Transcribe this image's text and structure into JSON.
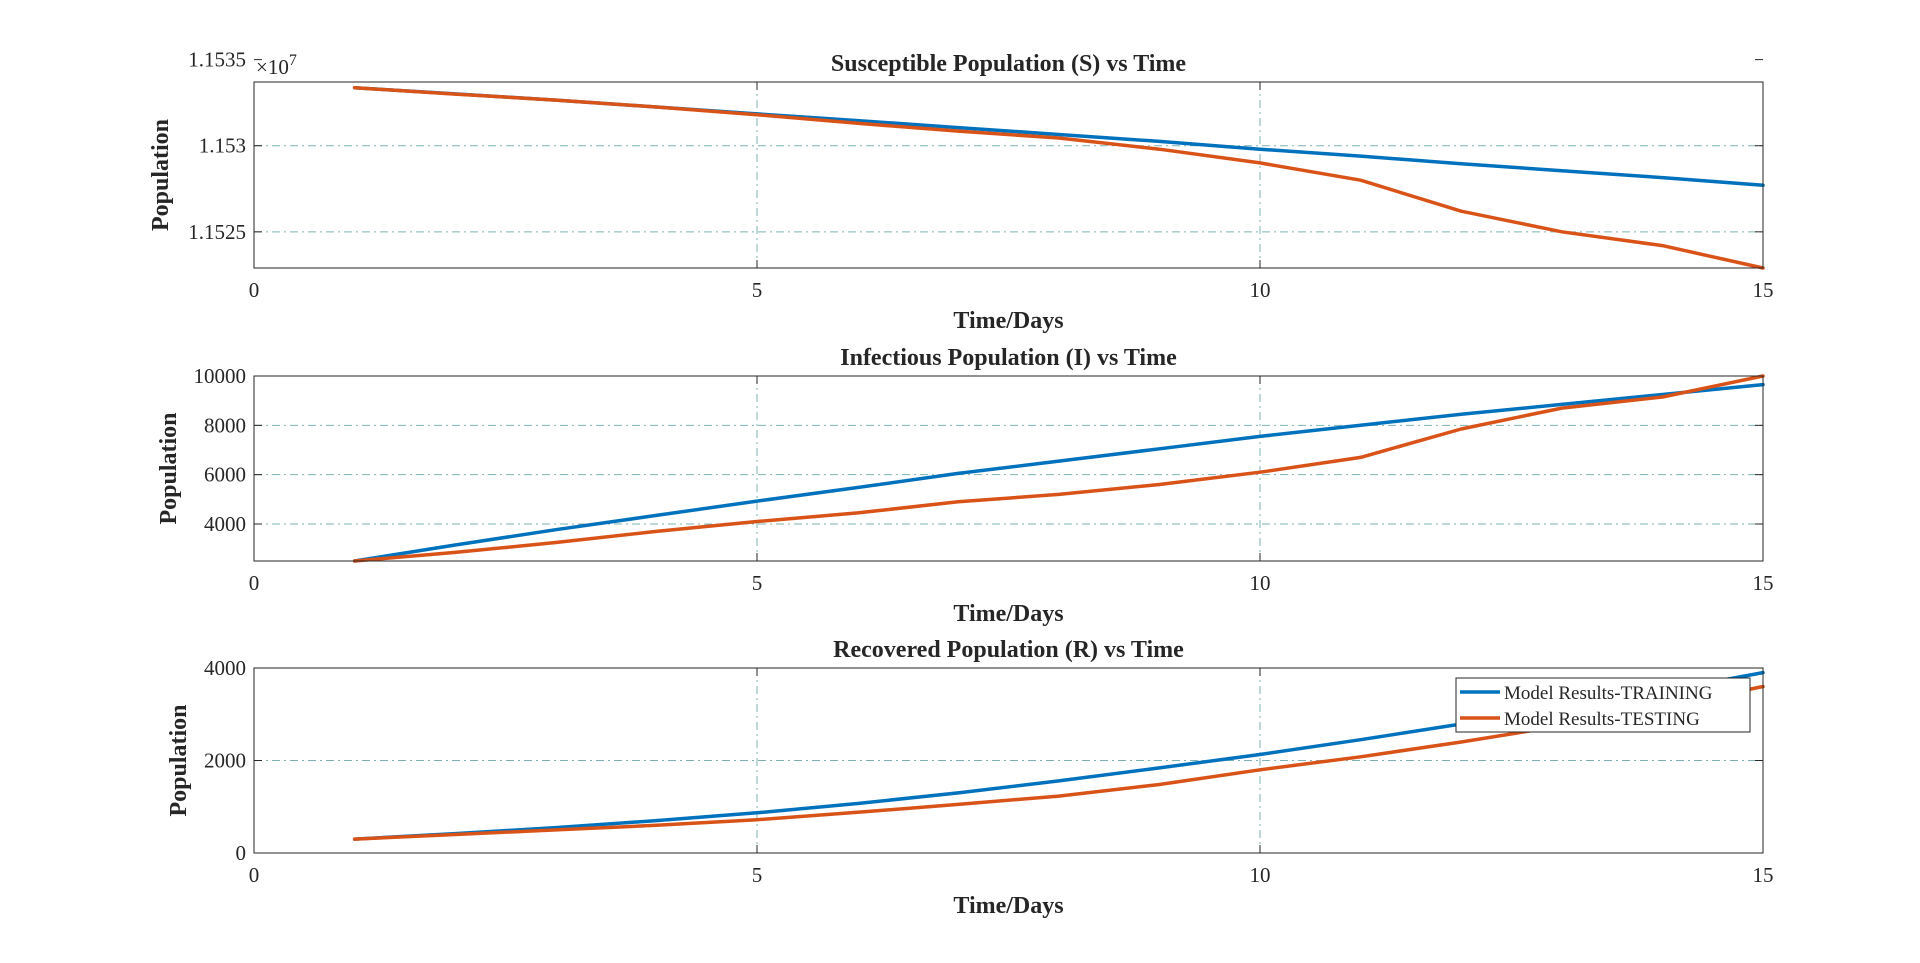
{
  "chart_data": [
    {
      "type": "line",
      "title": "Susceptible Population (S) vs Time",
      "xlabel": "Time/Days",
      "ylabel": "Population",
      "xlim": [
        0,
        15
      ],
      "ylim": [
        11522900,
        11533700
      ],
      "xticks": [
        0,
        5,
        10,
        15
      ],
      "xtick_labels": [
        "0",
        "5",
        "10",
        "15"
      ],
      "yticks": [
        11525000,
        11530000,
        11535000
      ],
      "ytick_labels": [
        "1.1525",
        "1.153",
        "1.1535"
      ],
      "y_exponent_label": "×10",
      "y_exponent_power": "7",
      "grid": true,
      "series": [
        {
          "color": "#0072BD",
          "x": [
            1,
            2,
            3,
            4,
            5,
            6,
            7,
            8,
            9,
            10,
            11,
            12,
            13,
            14,
            15
          ],
          "y": [
            11533370,
            11533010,
            11532650,
            11532250,
            11531850,
            11531460,
            11531050,
            11530650,
            11530250,
            11529800,
            11529400,
            11528950,
            11528550,
            11528150,
            11527700
          ]
        },
        {
          "color": "#D95319",
          "x": [
            1,
            2,
            3,
            4,
            5,
            6,
            7,
            8,
            9,
            10,
            11,
            12,
            13,
            14,
            15
          ],
          "y": [
            11533370,
            11533000,
            11532650,
            11532250,
            11531800,
            11531300,
            11530850,
            11530450,
            11529800,
            11529000,
            11528000,
            11526200,
            11525000,
            11524200,
            11522900
          ]
        }
      ]
    },
    {
      "type": "line",
      "title": "Infectious Population (I) vs Time",
      "xlabel": "Time/Days",
      "ylabel": "Population",
      "xlim": [
        0,
        15
      ],
      "ylim": [
        2500,
        10000
      ],
      "xticks": [
        0,
        5,
        10,
        15
      ],
      "xtick_labels": [
        "0",
        "5",
        "10",
        "15"
      ],
      "yticks": [
        4000,
        6000,
        8000,
        10000
      ],
      "ytick_labels": [
        "4000",
        "6000",
        "8000",
        "10000"
      ],
      "grid": true,
      "series": [
        {
          "color": "#0072BD",
          "x": [
            1,
            2,
            3,
            4,
            5,
            6,
            7,
            8,
            9,
            10,
            11,
            12,
            13,
            14,
            15
          ],
          "y": [
            2500,
            3150,
            3770,
            4350,
            4930,
            5480,
            6050,
            6550,
            7050,
            7550,
            8000,
            8450,
            8850,
            9250,
            9650
          ]
        },
        {
          "color": "#D95319",
          "x": [
            1,
            2,
            3,
            4,
            5,
            6,
            7,
            8,
            9,
            10,
            11,
            12,
            13,
            14,
            15
          ],
          "y": [
            2500,
            2850,
            3250,
            3700,
            4100,
            4450,
            4900,
            5200,
            5600,
            6100,
            6700,
            7850,
            8700,
            9150,
            10000
          ]
        }
      ]
    },
    {
      "type": "line",
      "title": "Recovered Population (R) vs Time",
      "xlabel": "Time/Days",
      "ylabel": "Population",
      "xlim": [
        0,
        15
      ],
      "ylim": [
        0,
        4000
      ],
      "xticks": [
        0,
        5,
        10,
        15
      ],
      "xtick_labels": [
        "0",
        "5",
        "10",
        "15"
      ],
      "yticks": [
        0,
        2000,
        4000
      ],
      "ytick_labels": [
        "0",
        "2000",
        "4000"
      ],
      "grid": true,
      "legend": {
        "placement": "top-right",
        "entries": [
          "Model Results-TRAINING",
          "Model Results-TESTING"
        ]
      },
      "series": [
        {
          "name": "Model Results-TRAINING",
          "color": "#0072BD",
          "x": [
            1,
            2,
            3,
            4,
            5,
            6,
            7,
            8,
            9,
            10,
            11,
            12,
            13,
            14,
            15
          ],
          "y": [
            300,
            420,
            550,
            700,
            870,
            1070,
            1300,
            1560,
            1840,
            2130,
            2450,
            2790,
            3140,
            3500,
            3900
          ]
        },
        {
          "name": "Model Results-TESTING",
          "color": "#D95319",
          "x": [
            1,
            2,
            3,
            4,
            5,
            6,
            7,
            8,
            9,
            10,
            11,
            12,
            13,
            14,
            15
          ],
          "y": [
            300,
            400,
            500,
            600,
            720,
            880,
            1050,
            1230,
            1480,
            1800,
            2080,
            2400,
            2750,
            3150,
            3600
          ]
        }
      ]
    }
  ]
}
